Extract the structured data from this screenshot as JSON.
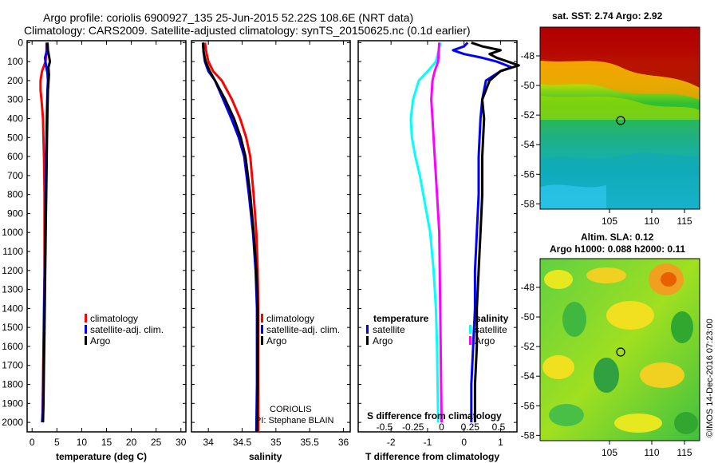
{
  "header": {
    "line1": "Argo profile: coriolis 6900927_135 25-Jun-2015 52.22S 108.6E (NRT data)",
    "line2": "Climatology: CARS2009. Satellite-adjusted climatology: synTS_20150625.nc (0.1d earlier)"
  },
  "colors": {
    "climatology": "#ff0000",
    "satellite": "#0000ff",
    "argo": "#000000",
    "sat_salinity": "#00ffff",
    "argo_salinity": "#ff00ff"
  },
  "chart_data": [
    {
      "id": "temperature",
      "type": "line",
      "xlabel": "temperature (deg C)",
      "xlim": [
        -1,
        31
      ],
      "xticks": [
        0,
        5,
        10,
        15,
        20,
        25,
        30
      ],
      "ylim": [
        2050,
        -10
      ],
      "yticks": [
        0,
        100,
        200,
        300,
        400,
        500,
        600,
        700,
        800,
        900,
        1000,
        1100,
        1200,
        1300,
        1400,
        1500,
        1600,
        1700,
        1800,
        1900,
        2000
      ],
      "legend": [
        "climatology",
        "satellite-adj. clim.",
        "Argo"
      ],
      "series": [
        {
          "name": "climatology",
          "color": "#ff0000",
          "x": [
            2.9,
            2.9,
            2.7,
            2.0,
            1.7,
            1.7,
            1.9,
            2.2,
            2.4,
            2.5,
            2.5,
            2.5,
            2.4,
            2.3,
            2.2,
            2.1,
            2.0
          ],
          "y": [
            0,
            50,
            100,
            150,
            200,
            250,
            300,
            400,
            600,
            800,
            1000,
            1200,
            1400,
            1600,
            1800,
            1950,
            2000
          ]
        },
        {
          "name": "satellite-adj. clim.",
          "color": "#0000ff",
          "x": [
            3.0,
            3.0,
            2.6,
            2.8,
            3.1,
            3.2,
            3.1,
            3.0,
            2.9,
            2.8,
            2.7,
            2.6,
            2.5,
            2.4,
            2.3,
            2.2,
            2.1
          ],
          "y": [
            0,
            40,
            80,
            120,
            160,
            200,
            250,
            350,
            500,
            700,
            900,
            1100,
            1300,
            1500,
            1700,
            1900,
            2000
          ]
        },
        {
          "name": "Argo",
          "color": "#000000",
          "x": [
            3.1,
            3.2,
            3.4,
            3.6,
            3.3,
            3.4,
            3.2,
            3.1,
            3.0,
            2.9,
            2.8,
            2.7,
            2.6,
            2.5,
            2.4,
            2.3,
            2.2
          ],
          "y": [
            0,
            40,
            70,
            100,
            130,
            170,
            250,
            350,
            500,
            700,
            900,
            1100,
            1300,
            1500,
            1700,
            1900,
            2000
          ]
        }
      ]
    },
    {
      "id": "salinity",
      "type": "line",
      "xlabel": "salinity",
      "xlim": [
        33.75,
        36.1
      ],
      "xticks": [
        34,
        34.5,
        35,
        35.5,
        36
      ],
      "ylim": [
        2050,
        -10
      ],
      "legend": [
        "climatology",
        "satellite-adj. clim.",
        "Argo"
      ],
      "series": [
        {
          "name": "climatology",
          "color": "#ff0000",
          "x": [
            33.95,
            33.97,
            34.0,
            34.07,
            34.2,
            34.35,
            34.47,
            34.56,
            34.62,
            34.67,
            34.71,
            34.73,
            34.74,
            34.74,
            34.74,
            34.74
          ],
          "y": [
            0,
            50,
            100,
            150,
            200,
            300,
            400,
            500,
            600,
            800,
            1000,
            1200,
            1400,
            1600,
            1800,
            2050
          ]
        },
        {
          "name": "satellite-adj. clim.",
          "color": "#0000ff",
          "x": [
            33.92,
            33.93,
            33.95,
            34.0,
            34.1,
            34.22,
            34.34,
            34.45,
            34.53,
            34.6,
            34.66,
            34.7,
            34.72,
            34.72,
            34.72,
            34.71
          ],
          "y": [
            0,
            50,
            100,
            150,
            200,
            300,
            400,
            500,
            600,
            800,
            1000,
            1200,
            1400,
            1600,
            1800,
            2050
          ]
        },
        {
          "name": "Argo",
          "color": "#000000",
          "x": [
            33.92,
            33.93,
            33.96,
            34.02,
            34.1,
            34.25,
            34.38,
            34.48,
            34.55,
            34.62,
            34.67,
            34.71,
            34.73,
            34.73,
            34.73,
            34.72
          ],
          "y": [
            0,
            50,
            100,
            150,
            200,
            300,
            400,
            500,
            600,
            800,
            1000,
            1200,
            1400,
            1600,
            1800,
            2050
          ]
        }
      ],
      "annotation": [
        "CORIOLIS",
        "PI: Stephane BLAIN"
      ]
    },
    {
      "id": "difference",
      "type": "line",
      "xlabel": "T difference from climatology",
      "xlim": [
        -2.9,
        1.45
      ],
      "xticks": [
        -2,
        -1,
        0,
        1
      ],
      "sxlabel": "S difference from climatology",
      "sxticks": [
        -0.5,
        -0.25,
        0,
        0.25,
        0.5
      ],
      "sxtick_labels": [
        "-0.5",
        "-0.25",
        "0",
        "0.25",
        "0.5"
      ],
      "ylim": [
        2050,
        -10
      ],
      "legend_left_title": "temperature",
      "legend_right_title": "salinity",
      "legend_left": [
        "satellite",
        "Argo"
      ],
      "legend_right": [
        "satellite",
        "Argo"
      ],
      "series": [
        {
          "name": "temperature satellite",
          "color": "#0000ff",
          "x": [
            0.1,
            0.0,
            -0.3,
            0.0,
            0.5,
            0.9,
            1.3,
            1.0,
            0.6,
            0.5,
            0.45,
            0.4,
            0.4,
            0.35,
            0.3,
            0.3,
            0.25,
            0.2,
            0.2
          ],
          "y": [
            0,
            20,
            40,
            60,
            80,
            100,
            130,
            150,
            200,
            300,
            400,
            600,
            800,
            1000,
            1200,
            1400,
            1600,
            1800,
            2000
          ]
        },
        {
          "name": "temperature Argo",
          "color": "#000000",
          "x": [
            0.2,
            0.5,
            1.0,
            0.7,
            0.9,
            1.2,
            1.5,
            1.0,
            0.7,
            0.5,
            0.55,
            0.5,
            0.5,
            0.45,
            0.4,
            0.35,
            0.35,
            0.3,
            0.3
          ],
          "y": [
            0,
            20,
            40,
            60,
            80,
            100,
            120,
            150,
            200,
            300,
            400,
            600,
            800,
            1000,
            1200,
            1400,
            1600,
            1800,
            2000
          ]
        },
        {
          "name": "salinity satellite",
          "color": "#00ffff",
          "x": [
            -0.01,
            -0.05,
            -0.12,
            -0.2,
            -0.25,
            -0.27,
            -0.26,
            -0.23,
            -0.19,
            -0.16,
            -0.13,
            -0.1,
            -0.07,
            -0.05,
            -0.04,
            -0.03
          ],
          "y": [
            0,
            100,
            150,
            200,
            300,
            400,
            500,
            600,
            700,
            800,
            900,
            1000,
            1200,
            1400,
            1600,
            2000
          ]
        },
        {
          "name": "salinity Argo",
          "color": "#ff00ff",
          "x": [
            -0.02,
            -0.03,
            -0.06,
            -0.08,
            -0.09,
            -0.08,
            -0.07,
            -0.06,
            -0.04,
            -0.02,
            -0.01,
            0.0
          ],
          "y": [
            0,
            100,
            150,
            200,
            300,
            400,
            500,
            600,
            800,
            1000,
            1500,
            2000
          ]
        }
      ]
    }
  ],
  "maps": {
    "sst": {
      "title": "sat. SST: 2.74 Argo: 2.92",
      "yticks": [
        "-48",
        "-50",
        "-52",
        "-54",
        "-56",
        "-58"
      ],
      "xticks": [
        "105",
        "110",
        "115"
      ]
    },
    "sla": {
      "title1": "Altim. SLA: 0.12",
      "title2": "Argo h1000: 0.088 h2000: 0.11",
      "yticks": [
        "-48",
        "-50",
        "-52",
        "-54",
        "-56",
        "-58"
      ],
      "xticks": [
        "105",
        "110",
        "115"
      ]
    },
    "credit": "©IMOS 14-Dec-2016 07:23:00"
  }
}
